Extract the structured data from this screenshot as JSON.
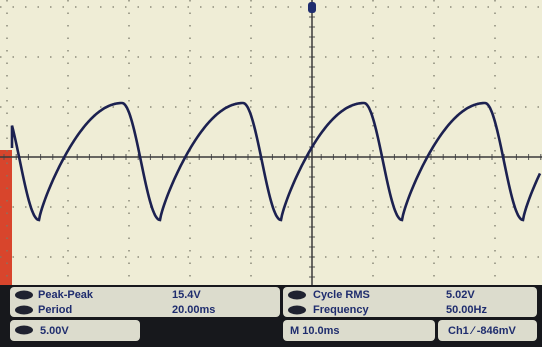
{
  "measurements": [
    {
      "label": "Peak-Peak",
      "value": "15.4V"
    },
    {
      "label": "Period",
      "value": "20.00ms"
    },
    {
      "label": "Cycle RMS",
      "value": "5.02V"
    },
    {
      "label": "Frequency",
      "value": "50.00Hz"
    }
  ],
  "status": {
    "channel_scale": "5.00V",
    "timebase": "M 10.0ms",
    "trigger": "Ch1 ∕ -846mV"
  }
}
